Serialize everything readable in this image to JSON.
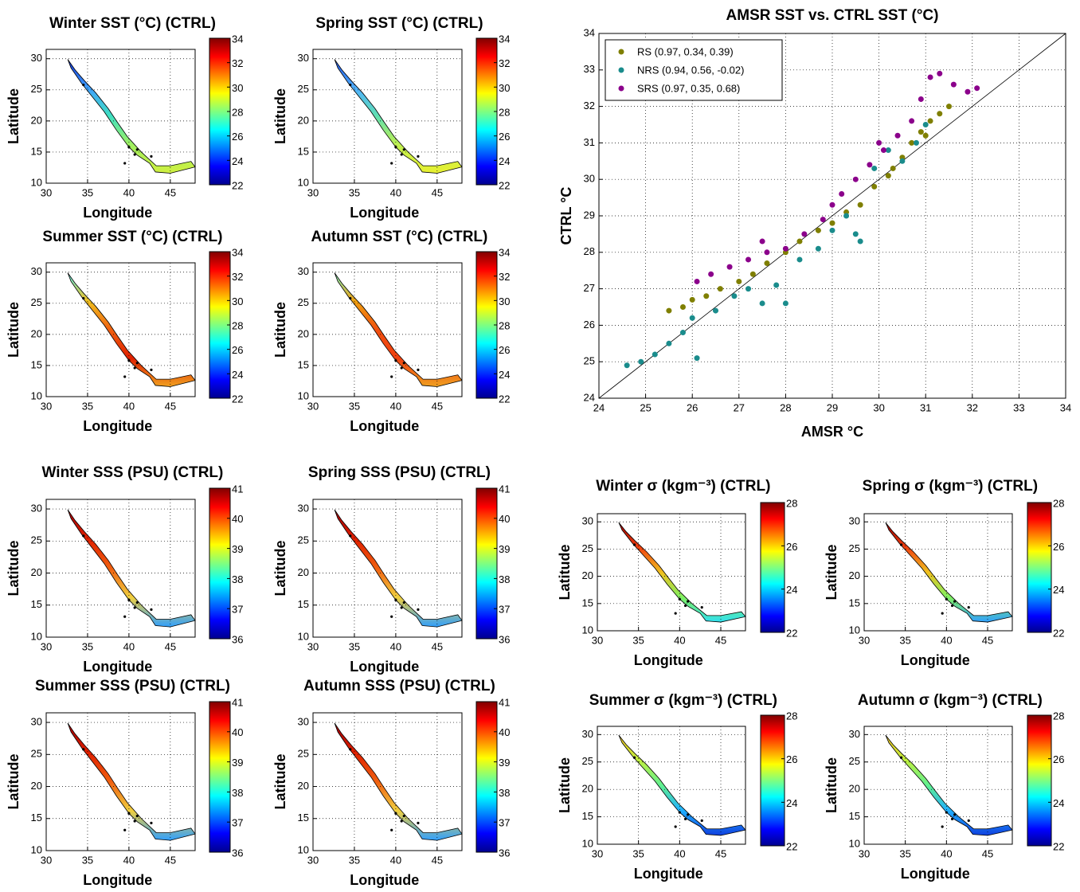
{
  "chart_data": [
    {
      "type": "map",
      "title": "Winter SST (°C) (CTRL)",
      "xlabel": "Longitude",
      "ylabel": "Latitude",
      "xlim": [
        30,
        48
      ],
      "ylim": [
        10,
        31.5
      ],
      "xticks": [
        30,
        35,
        40,
        45
      ],
      "yticks": [
        10,
        15,
        20,
        25,
        30
      ],
      "grid": true,
      "colorbar": {
        "lim": [
          22,
          34
        ],
        "ticks": [
          22,
          24,
          26,
          28,
          30,
          32,
          34
        ]
      }
    },
    {
      "type": "map",
      "title": "Spring SST (°C) (CTRL)",
      "xlabel": "Longitude",
      "ylabel": "Latitude",
      "xlim": [
        30,
        48
      ],
      "ylim": [
        10,
        31.5
      ],
      "xticks": [
        30,
        35,
        40,
        45
      ],
      "yticks": [
        10,
        15,
        20,
        25,
        30
      ],
      "grid": true,
      "colorbar": {
        "lim": [
          22,
          34
        ],
        "ticks": [
          22,
          24,
          26,
          28,
          30,
          32,
          34
        ]
      }
    },
    {
      "type": "map",
      "title": "Summer SST (°C) (CTRL)",
      "xlabel": "Longitude",
      "ylabel": "Latitude",
      "xlim": [
        30,
        48
      ],
      "ylim": [
        10,
        31.5
      ],
      "xticks": [
        30,
        35,
        40,
        45
      ],
      "yticks": [
        10,
        15,
        20,
        25,
        30
      ],
      "grid": true,
      "colorbar": {
        "lim": [
          22,
          34
        ],
        "ticks": [
          22,
          24,
          26,
          28,
          30,
          32,
          34
        ]
      }
    },
    {
      "type": "map",
      "title": "Autumn SST (°C) (CTRL)",
      "xlabel": "Longitude",
      "ylabel": "Latitude",
      "xlim": [
        30,
        48
      ],
      "ylim": [
        10,
        31.5
      ],
      "xticks": [
        30,
        35,
        40,
        45
      ],
      "yticks": [
        10,
        15,
        20,
        25,
        30
      ],
      "grid": true,
      "colorbar": {
        "lim": [
          22,
          34
        ],
        "ticks": [
          22,
          24,
          26,
          28,
          30,
          32,
          34
        ]
      }
    },
    {
      "type": "map",
      "title": "Winter SSS (PSU) (CTRL)",
      "xlabel": "Longitude",
      "ylabel": "Latitude",
      "xlim": [
        30,
        48
      ],
      "ylim": [
        10,
        31.5
      ],
      "xticks": [
        30,
        35,
        40,
        45
      ],
      "yticks": [
        10,
        15,
        20,
        25,
        30
      ],
      "grid": true,
      "colorbar": {
        "lim": [
          36,
          41
        ],
        "ticks": [
          36,
          37,
          38,
          39,
          40,
          41
        ]
      }
    },
    {
      "type": "map",
      "title": "Spring SSS (PSU) (CTRL)",
      "xlabel": "Longitude",
      "ylabel": "Latitude",
      "xlim": [
        30,
        48
      ],
      "ylim": [
        10,
        31.5
      ],
      "xticks": [
        30,
        35,
        40,
        45
      ],
      "yticks": [
        10,
        15,
        20,
        25,
        30
      ],
      "grid": true,
      "colorbar": {
        "lim": [
          36,
          41
        ],
        "ticks": [
          36,
          37,
          38,
          39,
          40,
          41
        ]
      }
    },
    {
      "type": "map",
      "title": "Summer SSS (PSU) (CTRL)",
      "xlabel": "Longitude",
      "ylabel": "Latitude",
      "xlim": [
        30,
        48
      ],
      "ylim": [
        10,
        31.5
      ],
      "xticks": [
        30,
        35,
        40,
        45
      ],
      "yticks": [
        10,
        15,
        20,
        25,
        30
      ],
      "grid": true,
      "colorbar": {
        "lim": [
          36,
          41
        ],
        "ticks": [
          36,
          37,
          38,
          39,
          40,
          41
        ]
      }
    },
    {
      "type": "map",
      "title": "Autumn SSS (PSU) (CTRL)",
      "xlabel": "Longitude",
      "ylabel": "Latitude",
      "xlim": [
        30,
        48
      ],
      "ylim": [
        10,
        31.5
      ],
      "xticks": [
        30,
        35,
        40,
        45
      ],
      "yticks": [
        10,
        15,
        20,
        25,
        30
      ],
      "grid": true,
      "colorbar": {
        "lim": [
          36,
          41
        ],
        "ticks": [
          36,
          37,
          38,
          39,
          40,
          41
        ]
      }
    },
    {
      "type": "map",
      "title": "Winter σ (kgm⁻³) (CTRL)",
      "xlabel": "Longitude",
      "ylabel": "Latitude",
      "xlim": [
        30,
        48
      ],
      "ylim": [
        10,
        31.5
      ],
      "xticks": [
        30,
        35,
        40,
        45
      ],
      "yticks": [
        10,
        15,
        20,
        25,
        30
      ],
      "grid": true,
      "colorbar": {
        "lim": [
          22,
          28
        ],
        "ticks": [
          22,
          24,
          26,
          28
        ]
      }
    },
    {
      "type": "map",
      "title": "Spring σ (kgm⁻³) (CTRL)",
      "xlabel": "Longitude",
      "ylabel": "Latitude",
      "xlim": [
        30,
        48
      ],
      "ylim": [
        10,
        31.5
      ],
      "xticks": [
        30,
        35,
        40,
        45
      ],
      "yticks": [
        10,
        15,
        20,
        25,
        30
      ],
      "grid": true,
      "colorbar": {
        "lim": [
          22,
          28
        ],
        "ticks": [
          22,
          24,
          26,
          28
        ]
      }
    },
    {
      "type": "map",
      "title": "Summer σ (kgm⁻³) (CTRL)",
      "xlabel": "Longitude",
      "ylabel": "Latitude",
      "xlim": [
        30,
        48
      ],
      "ylim": [
        10,
        31.5
      ],
      "xticks": [
        30,
        35,
        40,
        45
      ],
      "yticks": [
        10,
        15,
        20,
        25,
        30
      ],
      "grid": true,
      "colorbar": {
        "lim": [
          22,
          28
        ],
        "ticks": [
          22,
          24,
          26,
          28
        ]
      }
    },
    {
      "type": "map",
      "title": "Autumn σ (kgm⁻³) (CTRL)",
      "xlabel": "Longitude",
      "ylabel": "Latitude",
      "xlim": [
        30,
        48
      ],
      "ylim": [
        10,
        31.5
      ],
      "xticks": [
        30,
        35,
        40,
        45
      ],
      "yticks": [
        10,
        15,
        20,
        25,
        30
      ],
      "grid": true,
      "colorbar": {
        "lim": [
          22,
          28
        ],
        "ticks": [
          22,
          24,
          26,
          28
        ]
      }
    },
    {
      "type": "scatter",
      "title": "AMSR SST vs. CTRL SST (°C)",
      "xlabel": "AMSR °C",
      "ylabel": "CTRL °C",
      "xlim": [
        24,
        34
      ],
      "ylim": [
        24,
        34
      ],
      "xticks": [
        24,
        25,
        26,
        27,
        28,
        29,
        30,
        31,
        32,
        33,
        34
      ],
      "yticks": [
        24,
        25,
        26,
        27,
        28,
        29,
        30,
        31,
        32,
        33,
        34
      ],
      "grid": true,
      "legend": "upper-left",
      "series": [
        {
          "name": "RS (0.97, 0.34, 0.39)",
          "color": "#7f7f00",
          "x": [
            25.5,
            25.8,
            26.0,
            26.3,
            26.6,
            27.0,
            27.3,
            27.6,
            28.0,
            28.3,
            28.7,
            29.0,
            29.3,
            29.6,
            29.9,
            30.2,
            30.5,
            30.7,
            30.9,
            31.1,
            31.3,
            31.5,
            31.0,
            30.3
          ],
          "values": [
            26.4,
            26.5,
            26.7,
            26.8,
            27.0,
            27.2,
            27.4,
            27.7,
            28.0,
            28.3,
            28.6,
            28.8,
            29.1,
            29.3,
            29.8,
            30.1,
            30.6,
            31.0,
            31.3,
            31.6,
            31.8,
            32.0,
            31.2,
            30.3
          ]
        },
        {
          "name": "NRS (0.94, 0.56, -0.02)",
          "color": "#1a8c8c",
          "x": [
            24.6,
            24.9,
            25.2,
            25.5,
            25.8,
            26.1,
            26.0,
            26.5,
            26.9,
            27.2,
            27.5,
            27.8,
            28.0,
            28.3,
            28.7,
            29.0,
            29.3,
            29.5,
            29.6,
            29.9,
            30.2,
            30.5,
            30.8,
            31.0
          ],
          "values": [
            24.9,
            25.0,
            25.2,
            25.5,
            25.8,
            25.1,
            26.2,
            26.4,
            26.8,
            27.0,
            26.6,
            27.1,
            26.6,
            27.8,
            28.1,
            28.6,
            29.0,
            28.5,
            28.3,
            30.3,
            30.8,
            30.5,
            31.0,
            31.5
          ]
        },
        {
          "name": "SRS (0.97, 0.35, 0.68)",
          "color": "#8b008b",
          "x": [
            26.1,
            26.4,
            26.8,
            27.2,
            27.6,
            28.0,
            28.4,
            28.8,
            29.2,
            29.5,
            29.8,
            30.1,
            30.4,
            30.7,
            30.9,
            31.1,
            31.3,
            31.6,
            31.9,
            32.1,
            30.0,
            29.0,
            27.5
          ],
          "values": [
            27.2,
            27.4,
            27.6,
            27.8,
            28.0,
            28.1,
            28.5,
            28.9,
            29.6,
            30.0,
            30.4,
            30.8,
            31.2,
            31.6,
            32.2,
            32.8,
            32.9,
            32.6,
            32.4,
            32.5,
            31.0,
            29.3,
            28.3
          ]
        }
      ]
    }
  ]
}
